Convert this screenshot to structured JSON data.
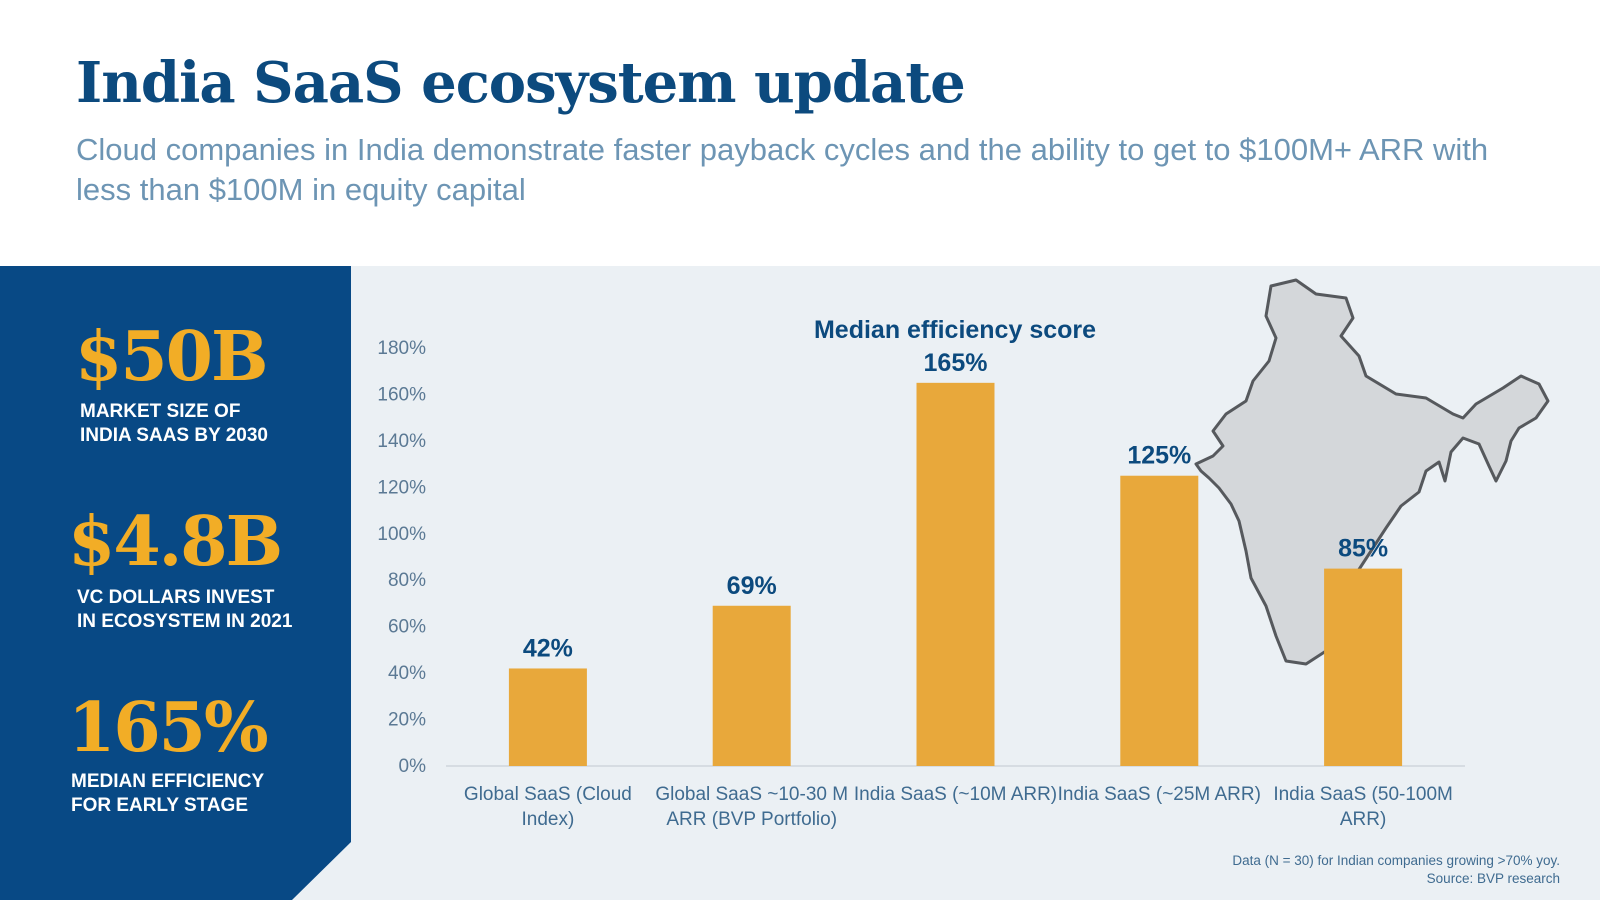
{
  "header": {
    "title": "India SaaS ecosystem update",
    "subtitle": "Cloud companies in India demonstrate faster payback cycles and the ability to get to $100M+ ARR with less than $100M in equity capital"
  },
  "stats": [
    {
      "value": "$50B",
      "label_line1": "MARKET SIZE OF",
      "label_line2": "INDIA SAAS BY 2030"
    },
    {
      "value": "$4.8B",
      "label_line1": "VC DOLLARS INVEST",
      "label_line2": "IN ECOSYSTEM IN 2021"
    },
    {
      "value": "165%",
      "label_line1": "MEDIAN EFFICIENCY",
      "label_line2": "FOR EARLY STAGE"
    }
  ],
  "chart_data": {
    "type": "bar",
    "title": "Median efficiency score",
    "categories": [
      [
        "Global SaaS (Cloud",
        "Index)"
      ],
      [
        "Global SaaS ~10-30 M",
        "ARR (BVP Portfolio)"
      ],
      [
        "India SaaS (~10M ARR)"
      ],
      [
        "India SaaS (~25M ARR)"
      ],
      [
        "India SaaS (50-100M",
        "ARR)"
      ]
    ],
    "values": [
      42,
      69,
      165,
      125,
      85
    ],
    "data_labels": [
      "42%",
      "69%",
      "165%",
      "125%",
      "85%"
    ],
    "ylim": [
      0,
      180
    ],
    "yticks": [
      0,
      20,
      40,
      60,
      80,
      100,
      120,
      140,
      160,
      180
    ],
    "ytick_labels": [
      "0%",
      "20%",
      "40%",
      "60%",
      "80%",
      "100%",
      "120%",
      "140%",
      "160%",
      "180%"
    ],
    "xlabel": "",
    "ylabel": "",
    "grid": false,
    "bar_color": "#e8a83b"
  },
  "map_icon": "india-map-icon",
  "footnote": {
    "line1": "Data (N = 30) for Indian companies growing >70% yoy.",
    "line2": "Source: BVP research"
  },
  "colors": {
    "navy": "#084985",
    "title_blue": "#0c4a7e",
    "accent_gold": "#f2ad26",
    "panel_bg": "#ebf0f4"
  }
}
